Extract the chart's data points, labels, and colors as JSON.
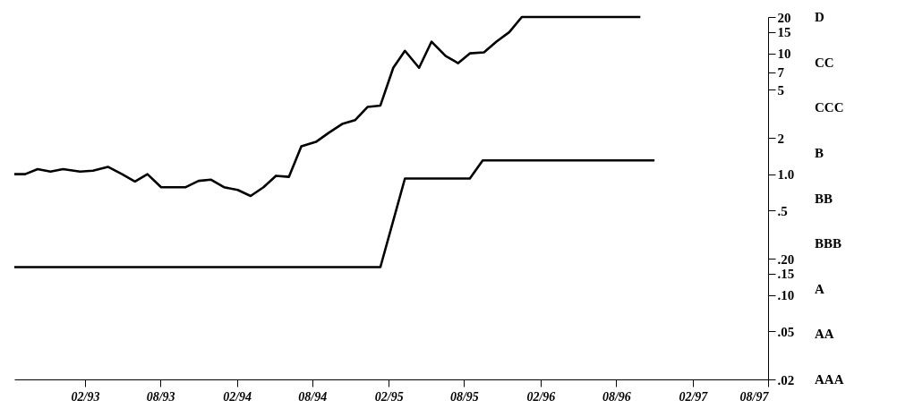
{
  "chart_data": {
    "type": "line",
    "log": true,
    "grid": false,
    "xlim": [
      "1992-08-15",
      "1997-08-01"
    ],
    "xticks": [
      {
        "value": "1993-02-01",
        "label": "02/93"
      },
      {
        "value": "1993-08-01",
        "label": "08/93"
      },
      {
        "value": "1994-02-01",
        "label": "02/94"
      },
      {
        "value": "1994-08-01",
        "label": "08/94"
      },
      {
        "value": "1995-02-01",
        "label": "02/95"
      },
      {
        "value": "1995-08-01",
        "label": "08/95"
      },
      {
        "value": "1996-02-01",
        "label": "02/96"
      },
      {
        "value": "1996-08-01",
        "label": "08/96"
      },
      {
        "value": "1997-02-01",
        "label": "02/97"
      },
      {
        "value": "1997-08-01",
        "label": "08/97"
      }
    ],
    "ylim": [
      0.02,
      20
    ],
    "yticks": [
      {
        "value": 0.02,
        "label": ".02"
      },
      {
        "value": 0.05,
        "label": ".05"
      },
      {
        "value": 0.1,
        "label": ".10"
      },
      {
        "value": 0.15,
        "label": ".15"
      },
      {
        "value": 0.2,
        "label": ".20"
      },
      {
        "value": 0.5,
        "label": ".5"
      },
      {
        "value": 1,
        "label": "1.0"
      },
      {
        "value": 2,
        "label": "2"
      },
      {
        "value": 5,
        "label": "5"
      },
      {
        "value": 7,
        "label": "7"
      },
      {
        "value": 10,
        "label": "10"
      },
      {
        "value": 15,
        "label": "15"
      },
      {
        "value": 20,
        "label": "20"
      }
    ],
    "annotations": [
      "D",
      "CC",
      "CCC",
      "B",
      "BB",
      "BBB",
      "A",
      "AA",
      "AAA"
    ],
    "series": [
      {
        "color": "#000000",
        "x": [
          "1992-08-15",
          "1992-09-10",
          "1992-10-10",
          "1992-11-10",
          "1992-12-10",
          "1993-01-20",
          "1993-02-20",
          "1993-03-28",
          "1993-05-01",
          "1993-06-01",
          "1993-07-01",
          "1993-08-03",
          "1993-10-01",
          "1993-11-01",
          "1993-12-01",
          "1994-01-01",
          "1994-02-03",
          "1994-03-06",
          "1994-04-06",
          "1994-05-06",
          "1994-06-06",
          "1994-07-06",
          "1994-08-10",
          "1994-09-10",
          "1994-10-12",
          "1994-11-12",
          "1994-12-12",
          "1995-01-12",
          "1995-02-12",
          "1995-03-12",
          "1995-04-15",
          "1995-05-15",
          "1995-06-18",
          "1995-07-18",
          "1995-08-15",
          "1995-09-18",
          "1995-10-18",
          "1995-11-18",
          "1995-12-18",
          "1996-09-28"
        ],
        "values": [
          1.0,
          1.0,
          1.1,
          1.05,
          1.1,
          1.05,
          1.07,
          1.15,
          1.0,
          0.87,
          1.0,
          0.78,
          0.78,
          0.88,
          0.9,
          0.78,
          0.74,
          0.66,
          0.78,
          0.97,
          0.95,
          1.7,
          1.85,
          2.2,
          2.6,
          2.8,
          3.6,
          3.7,
          7.6,
          10.5,
          7.6,
          12.5,
          9.5,
          8.3,
          10,
          10.2,
          12.5,
          15,
          20,
          20
        ]
      },
      {
        "color": "#000000",
        "x": [
          "1992-08-15",
          "1995-01-12",
          "1995-03-12",
          "1995-08-15",
          "1995-09-15",
          "1996-11-01"
        ],
        "values": [
          0.17,
          0.17,
          0.92,
          0.92,
          1.3,
          1.3
        ]
      }
    ]
  }
}
